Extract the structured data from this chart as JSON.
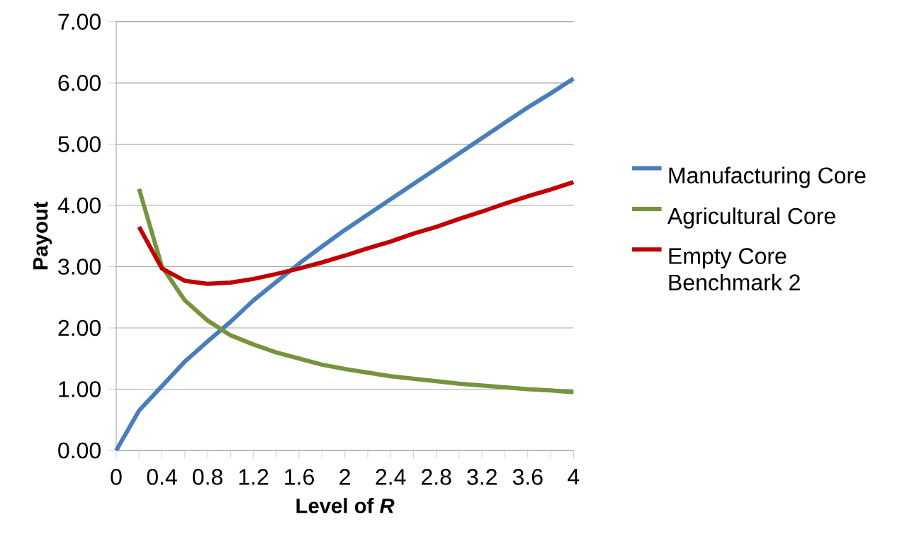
{
  "chart_data": {
    "type": "line",
    "xlabel": "Level of *R*",
    "ylabel": "Payout",
    "x": [
      0,
      0.2,
      0.4,
      0.6,
      0.8,
      1.0,
      1.2,
      1.4,
      1.6,
      1.8,
      2.0,
      2.2,
      2.4,
      2.6,
      2.8,
      3.0,
      3.2,
      3.4,
      3.6,
      3.8,
      4.0
    ],
    "series": [
      {
        "name": "Manufacturing Core",
        "color": "#4a7ebb",
        "values": [
          0,
          0.65,
          1.05,
          1.45,
          1.78,
          2.1,
          2.45,
          2.75,
          3.05,
          3.33,
          3.6,
          3.85,
          4.1,
          4.35,
          4.6,
          4.85,
          5.1,
          5.35,
          5.6,
          5.83,
          6.07
        ]
      },
      {
        "name": "Agricultural Core",
        "color": "#77933c",
        "values": [
          null,
          4.27,
          3.0,
          2.45,
          2.12,
          1.88,
          1.73,
          1.6,
          1.5,
          1.4,
          1.33,
          1.27,
          1.21,
          1.17,
          1.13,
          1.09,
          1.06,
          1.03,
          1.0,
          0.98,
          0.95
        ]
      },
      {
        "name": "Empty Core Benchmark 2",
        "color": "#c00000",
        "values": [
          null,
          3.65,
          2.97,
          2.77,
          2.72,
          2.74,
          2.8,
          2.88,
          2.97,
          3.07,
          3.18,
          3.3,
          3.41,
          3.54,
          3.65,
          3.78,
          3.9,
          4.03,
          4.15,
          4.26,
          4.38
        ]
      }
    ],
    "xlim": [
      0,
      4
    ],
    "xticks": [
      0,
      {
        "value": 0.2,
        "label": null
      },
      0.4,
      {
        "value": 0.6,
        "label": null
      },
      0.8,
      {
        "value": 1.0,
        "label": null
      },
      1.2,
      {
        "value": 1.4,
        "label": null
      },
      1.6,
      {
        "value": 1.8,
        "label": null
      },
      2,
      {
        "value": 2.2,
        "label": null
      },
      2.4,
      {
        "value": 2.6,
        "label": null
      },
      2.8,
      {
        "value": 3.0,
        "label": null
      },
      3.2,
      {
        "value": 3.4,
        "label": null
      },
      3.6,
      {
        "value": 3.8,
        "label": null
      },
      4
    ],
    "ylim": [
      0,
      7
    ],
    "yticks": [
      {
        "value": 0,
        "label": "0.00"
      },
      {
        "value": 1,
        "label": "1.00"
      },
      {
        "value": 2,
        "label": "2.00"
      },
      {
        "value": 3,
        "label": "3.00"
      },
      {
        "value": 4,
        "label": "4.00"
      },
      {
        "value": 5,
        "label": "5.00"
      },
      {
        "value": 6,
        "label": "6.00"
      },
      {
        "value": 7,
        "label": "7.00"
      }
    ],
    "grid": "y",
    "legend": "right",
    "marker": "none",
    "line_style": "solid"
  }
}
